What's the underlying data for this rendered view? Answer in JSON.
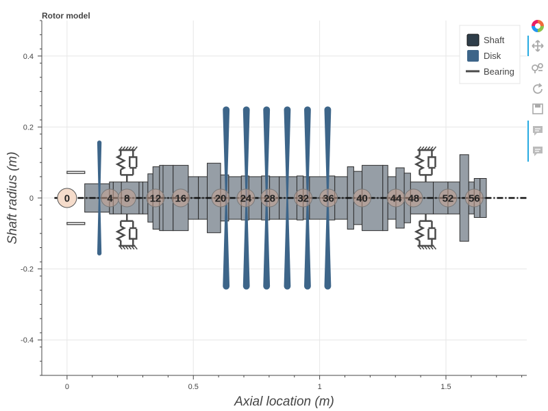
{
  "chart_data": {
    "type": "rotor_model",
    "title": "Rotor model",
    "xlabel": "Axial location (m)",
    "ylabel": "Shaft radius (m)",
    "xlim": [
      -0.1,
      1.82
    ],
    "ylim": [
      -0.5,
      0.5
    ],
    "xticks": [
      0,
      0.5,
      1,
      1.5
    ],
    "xtick_labels": [
      "0",
      "0.5",
      "1",
      "1.5"
    ],
    "yticks": [
      -0.4,
      -0.2,
      0,
      0.2,
      0.4
    ],
    "ytick_labels": [
      "-0.4",
      "-0.2",
      "0",
      "0.2",
      "0.4"
    ],
    "grid": true,
    "legend": {
      "placement": "top-right",
      "items": [
        {
          "label": "Shaft",
          "kind": "shaft"
        },
        {
          "label": "Disk",
          "kind": "disk"
        },
        {
          "label": "Bearing",
          "kind": "bearing"
        }
      ]
    },
    "colors": {
      "shaft_fill": "#969ea6",
      "shaft_edge": "#2b2b2b",
      "disk": "#3d6589",
      "bearing": "#4a4a4a",
      "node_fill": "#c8a290",
      "node0_fill": "#f5dccb",
      "centerline": "#111111",
      "grid": "#e6e6e6"
    },
    "node_labels": [
      {
        "label": "0",
        "x": 0.0
      },
      {
        "label": "4",
        "x": 0.17
      },
      {
        "label": "8",
        "x": 0.237
      },
      {
        "label": "12",
        "x": 0.35
      },
      {
        "label": "16",
        "x": 0.45
      },
      {
        "label": "20",
        "x": 0.608
      },
      {
        "label": "24",
        "x": 0.708
      },
      {
        "label": "28",
        "x": 0.802
      },
      {
        "label": "32",
        "x": 0.935
      },
      {
        "label": "36",
        "x": 1.035
      },
      {
        "label": "40",
        "x": 1.168
      },
      {
        "label": "44",
        "x": 1.302
      },
      {
        "label": "48",
        "x": 1.372
      },
      {
        "label": "52",
        "x": 1.508
      },
      {
        "label": "56",
        "x": 1.612
      }
    ],
    "shaft_elements": [
      {
        "x0": 0.07,
        "x1": 0.168,
        "r": 0.04
      },
      {
        "x0": 0.168,
        "x1": 0.183,
        "r": 0.045
      },
      {
        "x0": 0.183,
        "x1": 0.215,
        "r": 0.045
      },
      {
        "x0": 0.215,
        "x1": 0.285,
        "r": 0.045
      },
      {
        "x0": 0.285,
        "x1": 0.3,
        "r": 0.045
      },
      {
        "x0": 0.3,
        "x1": 0.32,
        "r": 0.045
      },
      {
        "x0": 0.32,
        "x1": 0.34,
        "r": 0.068
      },
      {
        "x0": 0.34,
        "x1": 0.366,
        "r": 0.088
      },
      {
        "x0": 0.366,
        "x1": 0.38,
        "r": 0.092
      },
      {
        "x0": 0.38,
        "x1": 0.42,
        "r": 0.092
      },
      {
        "x0": 0.42,
        "x1": 0.48,
        "r": 0.092
      },
      {
        "x0": 0.48,
        "x1": 0.52,
        "r": 0.06
      },
      {
        "x0": 0.52,
        "x1": 0.555,
        "r": 0.06
      },
      {
        "x0": 0.555,
        "x1": 0.608,
        "r": 0.098
      },
      {
        "x0": 0.608,
        "x1": 0.64,
        "r": 0.065
      },
      {
        "x0": 0.64,
        "x1": 0.69,
        "r": 0.06
      },
      {
        "x0": 0.69,
        "x1": 0.72,
        "r": 0.062
      },
      {
        "x0": 0.72,
        "x1": 0.77,
        "r": 0.06
      },
      {
        "x0": 0.77,
        "x1": 0.802,
        "r": 0.062
      },
      {
        "x0": 0.802,
        "x1": 0.84,
        "r": 0.06
      },
      {
        "x0": 0.84,
        "x1": 0.91,
        "r": 0.06
      },
      {
        "x0": 0.91,
        "x1": 0.935,
        "r": 0.062
      },
      {
        "x0": 0.935,
        "x1": 0.96,
        "r": 0.06
      },
      {
        "x0": 0.96,
        "x1": 1.035,
        "r": 0.06
      },
      {
        "x0": 1.035,
        "x1": 1.06,
        "r": 0.062
      },
      {
        "x0": 1.06,
        "x1": 1.11,
        "r": 0.06
      },
      {
        "x0": 1.11,
        "x1": 1.135,
        "r": 0.088
      },
      {
        "x0": 1.135,
        "x1": 1.168,
        "r": 0.075
      },
      {
        "x0": 1.168,
        "x1": 1.25,
        "r": 0.092
      },
      {
        "x0": 1.25,
        "x1": 1.27,
        "r": 0.092
      },
      {
        "x0": 1.27,
        "x1": 1.302,
        "r": 0.06
      },
      {
        "x0": 1.302,
        "x1": 1.335,
        "r": 0.085
      },
      {
        "x0": 1.335,
        "x1": 1.36,
        "r": 0.07
      },
      {
        "x0": 1.36,
        "x1": 1.45,
        "r": 0.045
      },
      {
        "x0": 1.45,
        "x1": 1.508,
        "r": 0.045
      },
      {
        "x0": 1.508,
        "x1": 1.555,
        "r": 0.045
      },
      {
        "x0": 1.555,
        "x1": 1.59,
        "r": 0.045
      },
      {
        "x0": 1.59,
        "x1": 1.612,
        "r": 0.045
      },
      {
        "x0": 1.612,
        "x1": 1.635,
        "r": 0.055
      },
      {
        "x0": 1.635,
        "x1": 1.66,
        "r": 0.055
      }
    ],
    "flanges": [
      {
        "x0": 1.555,
        "x1": 1.59,
        "r": 0.122
      }
    ],
    "disks": [
      {
        "x": 0.128,
        "r": 0.162,
        "w": 0.018
      },
      {
        "x": 0.63,
        "r": 0.258,
        "w": 0.028
      },
      {
        "x": 0.71,
        "r": 0.258,
        "w": 0.028
      },
      {
        "x": 0.79,
        "r": 0.258,
        "w": 0.028
      },
      {
        "x": 0.872,
        "r": 0.258,
        "w": 0.028
      },
      {
        "x": 0.952,
        "r": 0.258,
        "w": 0.028
      },
      {
        "x": 1.032,
        "r": 0.258,
        "w": 0.028
      }
    ],
    "bearings": [
      {
        "x": 0.237,
        "y_attach": 0.045,
        "y_top": 0.135
      },
      {
        "x": 1.42,
        "y_attach": 0.045,
        "y_top": 0.135
      }
    ],
    "supports": [
      {
        "x0": 0.0,
        "x1": 0.07,
        "y": 0.072
      }
    ]
  }
}
